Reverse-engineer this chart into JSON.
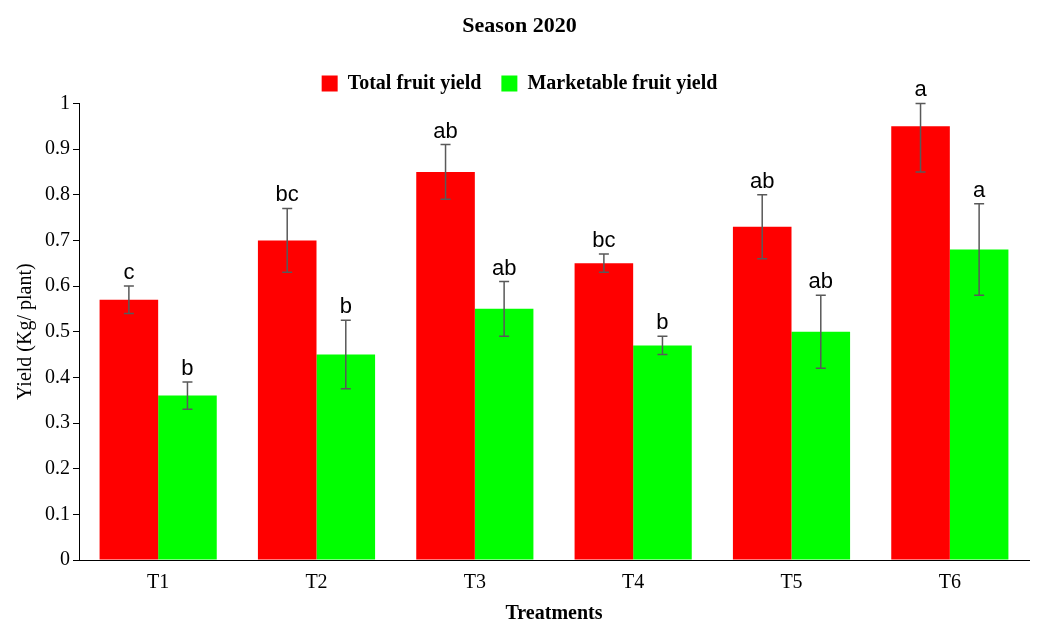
{
  "chart_data": {
    "type": "bar",
    "title": "Season 2020",
    "xlabel": "Treatments",
    "ylabel": "Yield (Kg/ plant)",
    "categories": [
      "T1",
      "T2",
      "T3",
      "T4",
      "T5",
      "T6"
    ],
    "series": [
      {
        "name": "Total fruit yield",
        "color": "#ff0000",
        "values": [
          0.57,
          0.7,
          0.85,
          0.65,
          0.73,
          0.95
        ],
        "errors": [
          0.03,
          0.07,
          0.06,
          0.02,
          0.07,
          [
            0.85,
            1.0
          ]
        ],
        "value_labels": [
          "c",
          "bc",
          "ab",
          "bc",
          "ab",
          "a"
        ]
      },
      {
        "name": "Marketable fruit yield",
        "color": "#00ff00",
        "values": [
          0.36,
          0.45,
          0.55,
          0.47,
          0.5,
          0.68
        ],
        "errors": [
          0.03,
          0.075,
          0.06,
          0.02,
          0.08,
          0.1
        ],
        "value_labels": [
          "b",
          "b",
          "ab",
          "b",
          "ab",
          "a"
        ]
      }
    ],
    "ylim": [
      0,
      1
    ],
    "yticks": [
      0,
      0.1,
      0.2,
      0.3,
      0.4,
      0.5,
      0.6,
      0.7,
      0.8,
      0.9,
      1
    ],
    "grid": false,
    "legend": "top"
  }
}
